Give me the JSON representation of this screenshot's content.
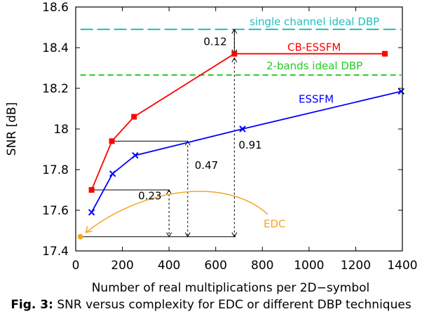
{
  "chart_data": {
    "type": "line",
    "xlabel": "Number of real multiplications per 2D−symbol",
    "ylabel": "SNR [dB]",
    "xlim": [
      0,
      1400
    ],
    "ylim": [
      17.4,
      18.6
    ],
    "xticks": [
      0,
      200,
      400,
      600,
      800,
      1000,
      1200,
      1400
    ],
    "yticks": [
      17.4,
      17.6,
      17.8,
      18,
      18.2,
      18.4,
      18.6
    ],
    "ytick_labels": [
      "17.4",
      "17.6",
      "17.8",
      "18",
      "18.2",
      "18.4",
      "18.6"
    ],
    "grid": false,
    "series": [
      {
        "name": "CB-ESSFM",
        "color": "#ff0000",
        "marker": "square",
        "x": [
          68,
          155,
          250,
          680,
          1325
        ],
        "y": [
          17.7,
          17.94,
          18.06,
          18.37,
          18.37
        ]
      },
      {
        "name": "ESSFM",
        "color": "#0000ff",
        "marker": "x",
        "x": [
          68,
          158,
          255,
          715,
          1395
        ],
        "y": [
          17.59,
          17.78,
          17.87,
          18.0,
          18.185
        ]
      },
      {
        "name": "EDC",
        "color": "#f5a623",
        "marker": "circle",
        "x": [
          20
        ],
        "y": [
          17.47
        ]
      }
    ],
    "reference_lines": [
      {
        "name": "single channel ideal DBP",
        "color": "#1fbfbf",
        "y": 18.49,
        "x_start": 20,
        "x_end": 1395
      },
      {
        "name": "2-bands ideal DBP",
        "color": "#22cc22",
        "y": 18.265,
        "x_start": 20,
        "x_end": 1395
      }
    ],
    "annotations": [
      {
        "text": "0.12",
        "x": 680,
        "y_from": 18.49,
        "y_to": 18.37
      },
      {
        "text": "0.91",
        "x": 680,
        "y_from": 18.37,
        "y_to": 17.47
      },
      {
        "text": "0.47",
        "x": 480,
        "y_from": 17.94,
        "y_to": 17.47
      },
      {
        "text": "0.23",
        "x": 400,
        "y_from": 17.7,
        "y_to": 17.47
      }
    ]
  },
  "caption": {
    "label": "Fig. 3:",
    "text": "SNR versus complexity for EDC or different DBP techniques"
  }
}
